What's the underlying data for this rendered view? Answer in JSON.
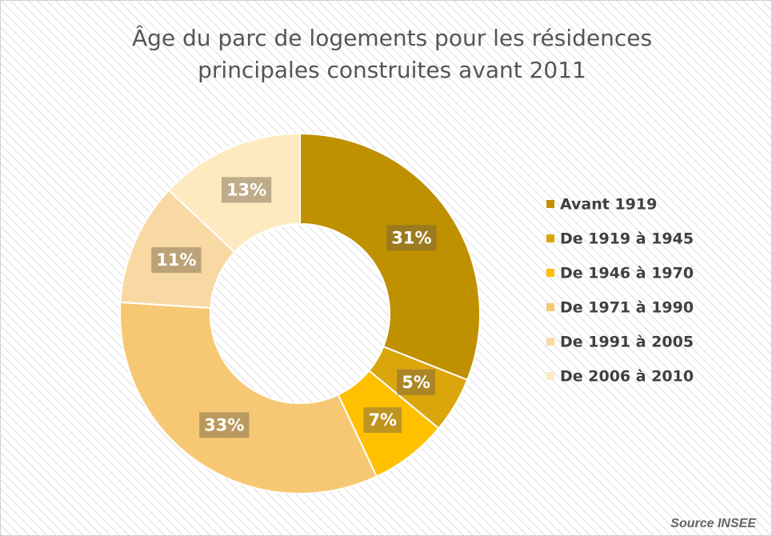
{
  "chart_data": {
    "type": "donut",
    "title": "Âge du parc de logements pour les résidences principales construites avant 2011",
    "categories": [
      "Avant 1919",
      "De 1919 à 1945",
      "De 1946 à 1970",
      "De 1971 à 1990",
      "De 1991 à 2005",
      "De 2006 à 2010"
    ],
    "values": [
      31,
      5,
      7,
      33,
      11,
      13
    ],
    "value_labels": [
      "31%",
      "5%",
      "7%",
      "33%",
      "11%",
      "13%"
    ],
    "colors": [
      "#bf9000",
      "#dba60b",
      "#ffc000",
      "#f7c874",
      "#f9d9a3",
      "#fdeac0"
    ],
    "legend": "right",
    "source": "Source INSEE"
  }
}
